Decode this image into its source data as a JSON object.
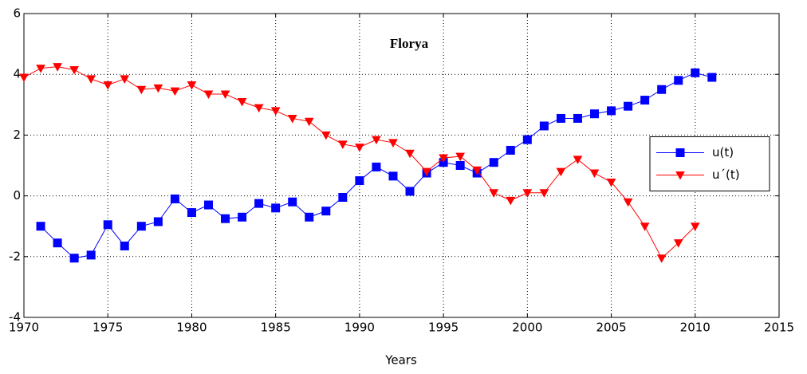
{
  "chart_data": {
    "type": "line",
    "title": "Florya",
    "x_label": "Years",
    "xlim": [
      1970,
      2015
    ],
    "xticks": [
      1970,
      1975,
      1980,
      1985,
      1990,
      1995,
      2000,
      2005,
      2010,
      2015
    ],
    "ylim": [
      -4,
      6
    ],
    "yticks": [
      -4,
      -2,
      0,
      2,
      4,
      6
    ],
    "grid": true,
    "legend": "east",
    "series": [
      {
        "name": "u(t)",
        "color": "#0000ff",
        "marker": "square",
        "x": [
          1971,
          1972,
          1973,
          1974,
          1975,
          1976,
          1977,
          1978,
          1979,
          1980,
          1981,
          1982,
          1983,
          1984,
          1985,
          1986,
          1987,
          1988,
          1989,
          1990,
          1991,
          1992,
          1993,
          1994,
          1995,
          1996,
          1997,
          1998,
          1999,
          2000,
          2001,
          2002,
          2003,
          2004,
          2005,
          2006,
          2007,
          2008,
          2009,
          2010,
          2011
        ],
        "values": [
          -1.0,
          -1.55,
          -2.05,
          -1.95,
          -0.95,
          -1.65,
          -1.0,
          -0.85,
          -0.1,
          -0.55,
          -0.3,
          -0.75,
          -0.7,
          -0.25,
          -0.4,
          -0.2,
          -0.7,
          -0.5,
          -0.05,
          0.5,
          0.95,
          0.65,
          0.15,
          0.75,
          1.1,
          1.0,
          0.75,
          1.1,
          1.5,
          1.85,
          2.3,
          2.55,
          2.55,
          2.7,
          2.8,
          2.95,
          3.15,
          3.5,
          3.8,
          4.05,
          3.9
        ]
      },
      {
        "name": "u´(t)",
        "color": "#ff0000",
        "marker": "triangle-down",
        "x": [
          1970,
          1971,
          1972,
          1973,
          1974,
          1975,
          1976,
          1977,
          1978,
          1979,
          1980,
          1981,
          1982,
          1983,
          1984,
          1985,
          1986,
          1987,
          1988,
          1989,
          1990,
          1991,
          1992,
          1993,
          1994,
          1995,
          1996,
          1997,
          1998,
          1999,
          2000,
          2001,
          2002,
          2003,
          2004,
          2005,
          2006,
          2007,
          2008,
          2009,
          2010
        ],
        "values": [
          3.9,
          4.2,
          4.25,
          4.15,
          3.85,
          3.65,
          3.85,
          3.5,
          3.55,
          3.45,
          3.65,
          3.35,
          3.35,
          3.1,
          2.9,
          2.8,
          2.55,
          2.45,
          2.0,
          1.7,
          1.6,
          1.85,
          1.75,
          1.4,
          0.8,
          1.25,
          1.3,
          0.85,
          0.1,
          -0.15,
          0.1,
          0.1,
          0.8,
          1.2,
          0.75,
          0.45,
          -0.2,
          -1.0,
          -2.05,
          -1.55,
          -1.0
        ]
      }
    ]
  }
}
